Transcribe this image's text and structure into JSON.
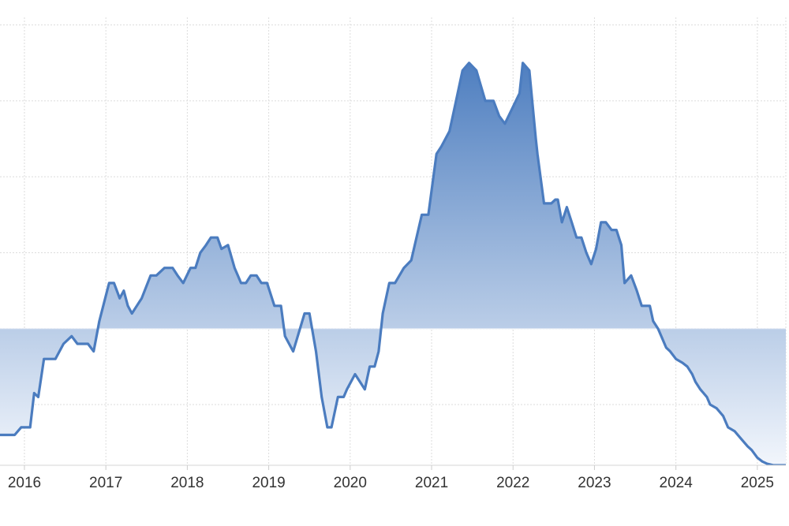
{
  "chart_data": {
    "type": "area",
    "title": "",
    "xlabel": "",
    "ylabel": "",
    "x_tick_labels": [
      "2016",
      "2017",
      "2018",
      "2019",
      "2020",
      "2021",
      "2022",
      "2023",
      "2024",
      "2025"
    ],
    "y_tick_labels": [],
    "xlim": [
      2015.7,
      2025.35
    ],
    "ylim": [
      -1.8,
      4.1
    ],
    "y_gridlines": [
      -1,
      0,
      1,
      2,
      3,
      4
    ],
    "baseline": 0,
    "grid": true,
    "legend": "none",
    "colors": {
      "line": "#4b7cbf",
      "fill_top": "#4f7fc0",
      "fill_bottom": "#f2f6fc",
      "grid": "#dcdcdc",
      "text": "#333333"
    },
    "series": [
      {
        "x": [
          2015.7,
          2015.83,
          2015.88,
          2015.96,
          2016.07,
          2016.12,
          2016.17,
          2016.24,
          2016.38,
          2016.48,
          2016.58,
          2016.65,
          2016.78,
          2016.85,
          2016.92,
          2017.04,
          2017.1,
          2017.17,
          2017.22,
          2017.27,
          2017.32,
          2017.38,
          2017.44,
          2017.55,
          2017.62,
          2017.72,
          2017.82,
          2017.88,
          2017.95,
          2018.04,
          2018.1,
          2018.16,
          2018.23,
          2018.29,
          2018.37,
          2018.42,
          2018.5,
          2018.58,
          2018.62,
          2018.66,
          2018.72,
          2018.78,
          2018.85,
          2018.91,
          2018.98,
          2019.07,
          2019.15,
          2019.2,
          2019.3,
          2019.44,
          2019.5,
          2019.58,
          2019.65,
          2019.72,
          2019.77,
          2019.85,
          2019.92,
          2019.96,
          2020.06,
          2020.12,
          2020.18,
          2020.24,
          2020.3,
          2020.35,
          2020.4,
          2020.48,
          2020.55,
          2020.66,
          2020.75,
          2020.88,
          2020.96,
          2021.06,
          2021.12,
          2021.22,
          2021.3,
          2021.38,
          2021.46,
          2021.55,
          2021.66,
          2021.76,
          2021.83,
          2021.9,
          2022.08,
          2022.12,
          2022.2,
          2022.28,
          2022.3,
          2022.38,
          2022.47,
          2022.52,
          2022.55,
          2022.6,
          2022.66,
          2022.72,
          2022.78,
          2022.84,
          2022.9,
          2022.96,
          2023.02,
          2023.08,
          2023.14,
          2023.21,
          2023.27,
          2023.33,
          2023.37,
          2023.45,
          2023.52,
          2023.58,
          2023.68,
          2023.72,
          2023.78,
          2023.82,
          2023.88,
          2023.93,
          2024.0,
          2024.08,
          2024.14,
          2024.2,
          2024.24,
          2024.3,
          2024.38,
          2024.42,
          2024.5,
          2024.58,
          2024.64,
          2024.72,
          2024.8,
          2024.88,
          2024.93,
          2025.0,
          2025.06,
          2025.12,
          2025.2,
          2025.25,
          2025.3,
          2025.35
        ],
        "values": [
          -1.4,
          -1.4,
          -1.4,
          -1.3,
          -1.3,
          -0.85,
          -0.9,
          -0.4,
          -0.4,
          -0.2,
          -0.1,
          -0.2,
          -0.2,
          -0.3,
          0.1,
          0.6,
          0.6,
          0.4,
          0.5,
          0.3,
          0.2,
          0.3,
          0.4,
          0.7,
          0.7,
          0.8,
          0.8,
          0.7,
          0.6,
          0.8,
          0.8,
          1.0,
          1.1,
          1.2,
          1.2,
          1.05,
          1.1,
          0.8,
          0.7,
          0.6,
          0.6,
          0.7,
          0.7,
          0.6,
          0.6,
          0.3,
          0.3,
          -0.1,
          -0.3,
          0.2,
          0.2,
          -0.3,
          -0.9,
          -1.3,
          -1.3,
          -0.9,
          -0.9,
          -0.8,
          -0.6,
          -0.7,
          -0.8,
          -0.5,
          -0.5,
          -0.3,
          0.2,
          0.6,
          0.6,
          0.8,
          0.9,
          1.5,
          1.5,
          2.3,
          2.4,
          2.6,
          3.0,
          3.4,
          3.5,
          3.4,
          3.0,
          3.0,
          2.8,
          2.7,
          3.1,
          3.5,
          3.4,
          2.5,
          2.3,
          1.65,
          1.65,
          1.7,
          1.7,
          1.4,
          1.6,
          1.4,
          1.2,
          1.2,
          1.0,
          0.85,
          1.05,
          1.4,
          1.4,
          1.3,
          1.3,
          1.1,
          0.6,
          0.7,
          0.5,
          0.3,
          0.3,
          0.1,
          0.0,
          -0.1,
          -0.25,
          -0.3,
          -0.4,
          -0.45,
          -0.5,
          -0.6,
          -0.7,
          -0.8,
          -0.9,
          -1.0,
          -1.05,
          -1.15,
          -1.3,
          -1.35,
          -1.45,
          -1.55,
          -1.6,
          -1.7,
          -1.75,
          -1.78,
          -1.8,
          -1.8,
          -1.8,
          -1.8
        ]
      }
    ]
  }
}
